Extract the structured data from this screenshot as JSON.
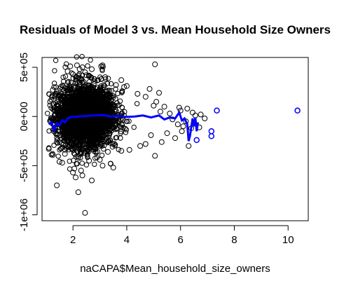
{
  "chart_data": {
    "type": "scatter",
    "title": "Residuals of Model 3 vs. Mean Household Size Owners",
    "xlabel": "naCAPA$Mean_household_size_owners",
    "ylabel": "",
    "xlim": [
      0.85,
      10.75
    ],
    "ylim": [
      -1060000,
      600000
    ],
    "x_ticks": [
      2,
      4,
      6,
      8,
      10
    ],
    "x_tick_labels": [
      "2",
      "4",
      "6",
      "8",
      "10"
    ],
    "y_ticks": [
      -1000000,
      -500000,
      0,
      500000
    ],
    "y_tick_labels": [
      "-1e+06",
      "-5e+05",
      "0e+00",
      "5e+05"
    ],
    "grid": false,
    "point_color": "#000000",
    "smooth_color": "#0000ff",
    "series": [
      {
        "points": [
          [
            2.45,
            -980000
          ],
          [
            2.2,
            -770000
          ],
          [
            1.4,
            -700000
          ],
          [
            2.7,
            -650000
          ],
          [
            2.1,
            -620000
          ],
          [
            2.35,
            -600000
          ],
          [
            2.0,
            -570000
          ],
          [
            2.3,
            -550000
          ],
          [
            2.05,
            -530000
          ],
          [
            3.5,
            -520000
          ],
          [
            3.1,
            -500000
          ],
          [
            3.4,
            -480000
          ],
          [
            1.6,
            -470000
          ],
          [
            1.5,
            -460000
          ],
          [
            2.6,
            -450000
          ],
          [
            3.0,
            -440000
          ],
          [
            5.05,
            -400000
          ],
          [
            1.25,
            -390000
          ],
          [
            1.7,
            -380000
          ],
          [
            3.3,
            -360000
          ],
          [
            3.8,
            -350000
          ],
          [
            4.1,
            -340000
          ],
          [
            1.1,
            -330000
          ],
          [
            4.5,
            -300000
          ],
          [
            4.7,
            -280000
          ],
          [
            5.3,
            -260000
          ],
          [
            6.3,
            -300000
          ],
          [
            6.6,
            -240000
          ],
          [
            5.8,
            -220000
          ],
          [
            7.15,
            -200000
          ],
          [
            4.9,
            -190000
          ],
          [
            5.5,
            -170000
          ],
          [
            7.15,
            -150000
          ],
          [
            6.05,
            -150000
          ],
          [
            6.4,
            -120000
          ],
          [
            6.1,
            -100000
          ],
          [
            5.9,
            -80000
          ],
          [
            6.7,
            -110000
          ],
          [
            6.2,
            -50000
          ],
          [
            6.5,
            -60000
          ],
          [
            5.7,
            -30000
          ],
          [
            6.55,
            10000
          ],
          [
            6.9,
            -20000
          ],
          [
            6.45,
            40000
          ],
          [
            6.75,
            20000
          ],
          [
            5.25,
            50000
          ],
          [
            6.0,
            60000
          ],
          [
            5.6,
            30000
          ],
          [
            5.95,
            90000
          ],
          [
            6.25,
            80000
          ],
          [
            5.0,
            110000
          ],
          [
            5.4,
            100000
          ],
          [
            7.35,
            60000
          ],
          [
            10.35,
            60000
          ],
          [
            5.1,
            150000
          ],
          [
            4.7,
            200000
          ],
          [
            4.4,
            230000
          ],
          [
            4.85,
            280000
          ],
          [
            5.2,
            240000
          ],
          [
            4.0,
            310000
          ],
          [
            3.8,
            370000
          ],
          [
            3.9,
            300000
          ],
          [
            3.6,
            320000
          ],
          [
            3.05,
            380000
          ],
          [
            3.2,
            400000
          ],
          [
            3.1,
            520000
          ],
          [
            3.05,
            510000
          ],
          [
            2.45,
            450000
          ],
          [
            2.7,
            480000
          ],
          [
            2.5,
            420000
          ],
          [
            2.35,
            500000
          ],
          [
            2.25,
            480000
          ],
          [
            2.15,
            520000
          ],
          [
            1.9,
            510000
          ],
          [
            1.8,
            460000
          ],
          [
            2.0,
            430000
          ],
          [
            5.05,
            530000
          ],
          [
            1.25,
            270000
          ],
          [
            1.35,
            230000
          ],
          [
            1.55,
            300000
          ],
          [
            1.15,
            150000
          ]
        ],
        "smooth": [
          [
            1.1,
            -80000
          ],
          [
            1.2,
            -60000
          ],
          [
            1.3,
            -140000
          ],
          [
            1.4,
            -70000
          ],
          [
            1.5,
            -90000
          ],
          [
            1.6,
            -40000
          ],
          [
            1.7,
            -60000
          ],
          [
            1.8,
            -20000
          ],
          [
            1.9,
            -10000
          ],
          [
            2.0,
            -5000
          ],
          [
            2.2,
            0
          ],
          [
            2.5,
            5000
          ],
          [
            2.8,
            10000
          ],
          [
            3.1,
            15000
          ],
          [
            3.4,
            0
          ],
          [
            3.7,
            5000
          ],
          [
            4.0,
            -5000
          ],
          [
            4.3,
            0
          ],
          [
            4.6,
            10000
          ],
          [
            4.9,
            -10000
          ],
          [
            5.2,
            10000
          ],
          [
            5.4,
            -30000
          ],
          [
            5.6,
            -10000
          ],
          [
            5.8,
            -20000
          ],
          [
            5.95,
            40000
          ],
          [
            6.05,
            -40000
          ],
          [
            6.15,
            -20000
          ],
          [
            6.25,
            -80000
          ],
          [
            6.3,
            -250000
          ],
          [
            6.35,
            -200000
          ],
          [
            6.45,
            -20000
          ],
          [
            6.5,
            -100000
          ],
          [
            6.55,
            -10000
          ],
          [
            6.6,
            -150000
          ],
          [
            6.65,
            -60000
          ]
        ]
      }
    ]
  }
}
